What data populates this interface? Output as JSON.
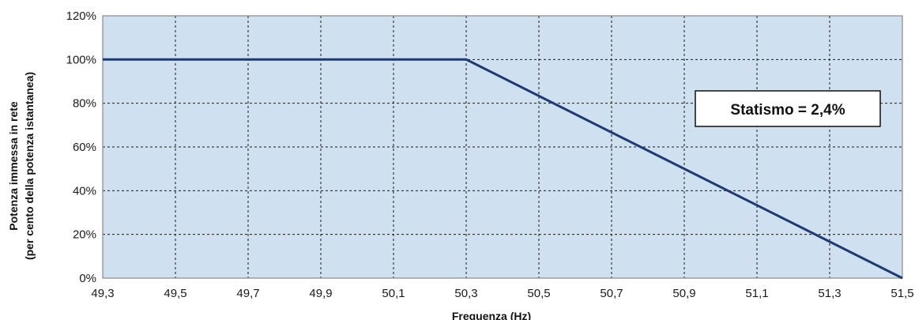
{
  "chart_data": {
    "type": "line",
    "xlabel": "Frequenza (Hz)",
    "ylabel_line1": "Potenza immessa in rete",
    "ylabel_line2": "(per cento della potenza istantanea)",
    "x_ticks": [
      "49,3",
      "49,5",
      "49,7",
      "49,9",
      "50,1",
      "50,3",
      "50,5",
      "50,7",
      "50,9",
      "51,1",
      "51,3",
      "51,5"
    ],
    "y_ticks": [
      "0%",
      "20%",
      "40%",
      "60%",
      "80%",
      "100%",
      "120%"
    ],
    "xlim": [
      49.3,
      51.5
    ],
    "ylim": [
      0,
      120
    ],
    "grid": true,
    "series": [
      {
        "points": [
          [
            49.3,
            100
          ],
          [
            50.3,
            100
          ],
          [
            51.5,
            0
          ]
        ]
      }
    ],
    "annotation": "Statismo = 2,4%",
    "colors": {
      "plot_bg": "#cfe0f1",
      "line": "#1f3a73",
      "grid": "#1a1a1a",
      "frame": "#8a8a8a"
    }
  }
}
